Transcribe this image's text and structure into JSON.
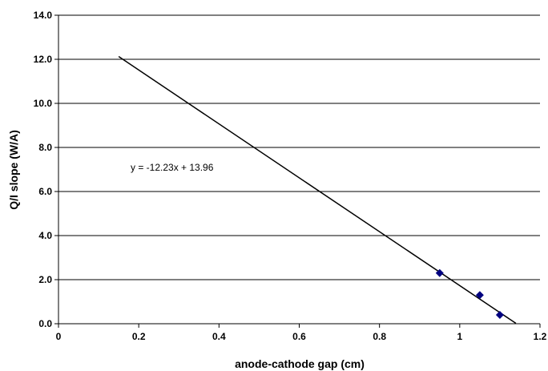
{
  "chart_data": {
    "type": "scatter",
    "title": "",
    "xlabel": "anode-cathode gap (cm)",
    "ylabel": "Q/I slope (W/A)",
    "xlim": [
      0,
      1.2
    ],
    "ylim": [
      0,
      14
    ],
    "x_ticks": [
      "0",
      "0.2",
      "0.4",
      "0.6",
      "0.8",
      "1",
      "1.2"
    ],
    "y_ticks": [
      "0.0",
      "2.0",
      "4.0",
      "6.0",
      "8.0",
      "10.0",
      "12.0",
      "14.0"
    ],
    "grid": "horizontal",
    "legend": "none",
    "series": [
      {
        "points": [
          {
            "x": 0.95,
            "y": 2.3
          },
          {
            "x": 1.05,
            "y": 1.3
          },
          {
            "x": 1.1,
            "y": 0.4
          }
        ],
        "marker": "diamond",
        "color": "#000080"
      }
    ],
    "trendline": {
      "type": "linear",
      "slope": -12.23,
      "intercept": 13.96,
      "x_start": 0.15,
      "x_end": 1.14,
      "color": "#000000"
    },
    "annotations": [
      "y = -12.23x + 13.96"
    ]
  }
}
